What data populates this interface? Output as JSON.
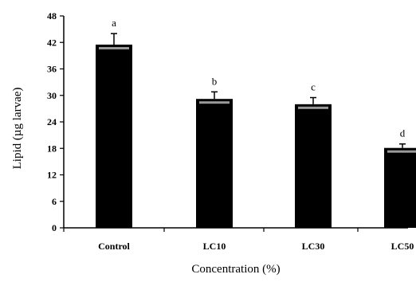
{
  "chart_data": {
    "type": "bar",
    "categories": [
      "Control",
      "LC10",
      "LC30",
      "LC50"
    ],
    "values": [
      41.5,
      29.2,
      28.0,
      18.1
    ],
    "errors": [
      2.5,
      1.6,
      1.5,
      0.9
    ],
    "significance": [
      "a",
      "b",
      "c",
      "d"
    ],
    "xlabel": "Concentration (%)",
    "ylabel": "Lipid (µg larvae)",
    "ylim": [
      0,
      48
    ],
    "yticks": [
      0,
      6,
      12,
      18,
      24,
      30,
      36,
      42,
      48
    ],
    "grid": false,
    "bar_color": "#000000"
  }
}
